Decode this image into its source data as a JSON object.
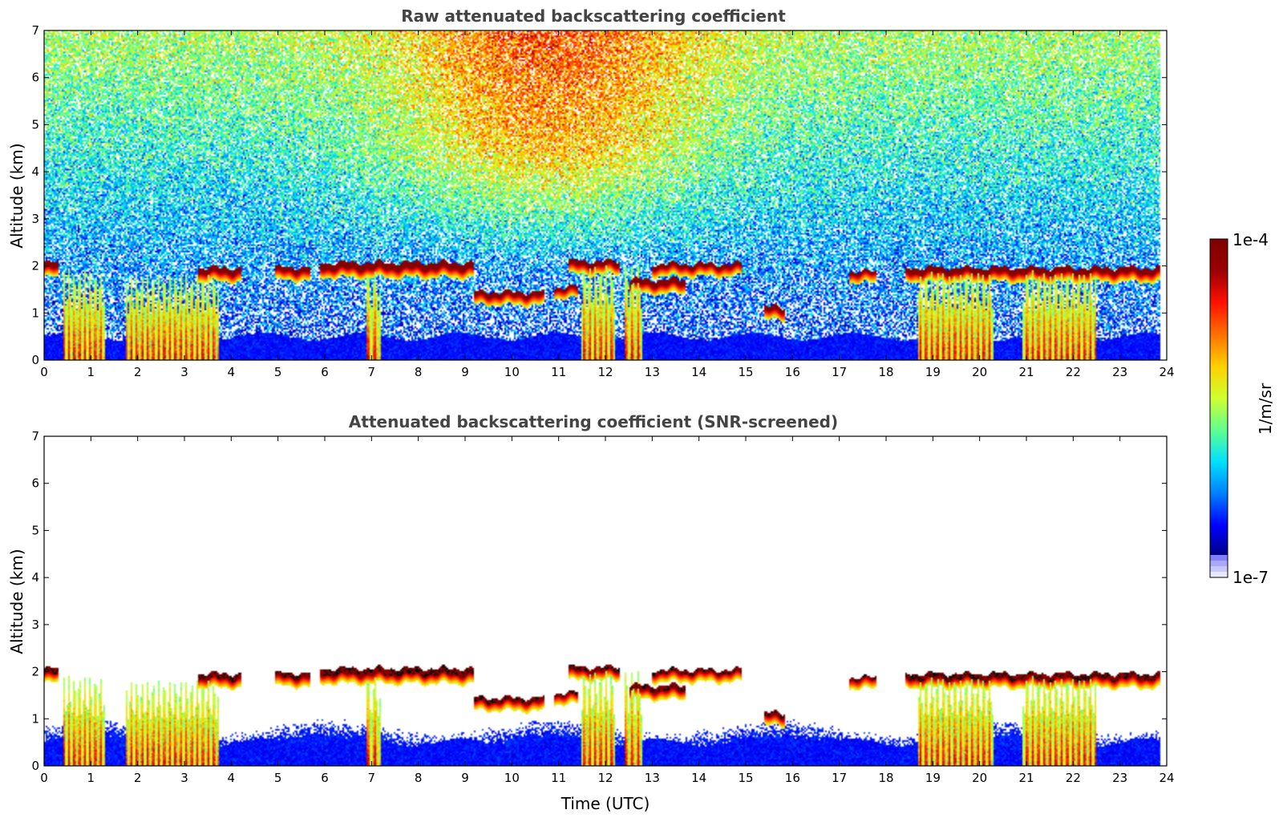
{
  "chart_data": [
    {
      "type": "heatmap",
      "title": "Raw attenuated backscattering coefficient",
      "xlabel": "",
      "ylabel": "Altitude (km)",
      "xlim": [
        0,
        24
      ],
      "ylim": [
        0,
        7
      ],
      "xticks": [
        "0",
        "1",
        "2",
        "3",
        "4",
        "5",
        "6",
        "7",
        "8",
        "9",
        "10",
        "11",
        "12",
        "13",
        "14",
        "15",
        "16",
        "17",
        "18",
        "19",
        "20",
        "21",
        "22",
        "23",
        "24"
      ],
      "yticks": [
        "0",
        "1",
        "2",
        "3",
        "4",
        "5",
        "6",
        "7"
      ],
      "data_end_hour": 23.85,
      "screened": false,
      "features": {
        "surface_layer_top_km": 0.5,
        "cloud_layers": [
          {
            "start": 0.0,
            "end": 0.3,
            "alt_km": 2.0,
            "thickness_km": 0.12
          },
          {
            "start": 3.3,
            "end": 4.2,
            "alt_km": 1.9,
            "thickness_km": 0.12
          },
          {
            "start": 4.95,
            "end": 5.7,
            "alt_km": 1.92,
            "thickness_km": 0.1
          },
          {
            "start": 5.9,
            "end": 9.2,
            "alt_km": 2.0,
            "thickness_km": 0.14
          },
          {
            "start": 9.2,
            "end": 10.7,
            "alt_km": 1.4,
            "thickness_km": 0.1
          },
          {
            "start": 10.9,
            "end": 11.4,
            "alt_km": 1.52,
            "thickness_km": 0.06
          },
          {
            "start": 11.2,
            "end": 12.3,
            "alt_km": 2.05,
            "thickness_km": 0.1
          },
          {
            "start": 12.5,
            "end": 13.7,
            "alt_km": 1.65,
            "thickness_km": 0.12
          },
          {
            "start": 13.0,
            "end": 14.9,
            "alt_km": 2.0,
            "thickness_km": 0.08
          },
          {
            "start": 15.4,
            "end": 15.85,
            "alt_km": 1.08,
            "thickness_km": 0.1
          },
          {
            "start": 17.2,
            "end": 17.8,
            "alt_km": 1.85,
            "thickness_km": 0.06
          },
          {
            "start": 18.4,
            "end": 23.85,
            "alt_km": 1.9,
            "thickness_km": 0.12
          }
        ],
        "precip_columns": [
          {
            "start": 0.4,
            "end": 1.3,
            "top_km": 1.9
          },
          {
            "start": 1.75,
            "end": 3.75,
            "top_km": 1.8
          },
          {
            "start": 6.9,
            "end": 7.2,
            "top_km": 1.9
          },
          {
            "start": 11.5,
            "end": 12.2,
            "top_km": 2.0
          },
          {
            "start": 12.4,
            "end": 12.8,
            "top_km": 2.0
          },
          {
            "start": 18.7,
            "end": 20.3,
            "top_km": 1.9
          },
          {
            "start": 20.9,
            "end": 22.5,
            "top_km": 1.9
          }
        ]
      }
    },
    {
      "type": "heatmap",
      "title": "Attenuated backscattering coefficient (SNR-screened)",
      "xlabel": "Time (UTC)",
      "ylabel": "Altitude (km)",
      "xlim": [
        0,
        24
      ],
      "ylim": [
        0,
        7
      ],
      "xticks": [
        "0",
        "1",
        "2",
        "3",
        "4",
        "5",
        "6",
        "7",
        "8",
        "9",
        "10",
        "11",
        "12",
        "13",
        "14",
        "15",
        "16",
        "17",
        "18",
        "19",
        "20",
        "21",
        "22",
        "23",
        "24"
      ],
      "yticks": [
        "0",
        "1",
        "2",
        "3",
        "4",
        "5",
        "6",
        "7"
      ],
      "data_end_hour": 23.85,
      "screened": true
    }
  ],
  "colorbar": {
    "label": "1/m/sr",
    "max_label": "1e-4",
    "min_label": "1e-7",
    "colormap": [
      "#00007f",
      "#0000ff",
      "#0080ff",
      "#00e0ff",
      "#60ff90",
      "#d0ff30",
      "#ffd000",
      "#ff7000",
      "#ff1000",
      "#9a0000",
      "#7f0000"
    ],
    "low_end_colors": [
      "#e8e8ff",
      "#c8c8ff",
      "#a8a8ff",
      "#8080ff"
    ]
  }
}
